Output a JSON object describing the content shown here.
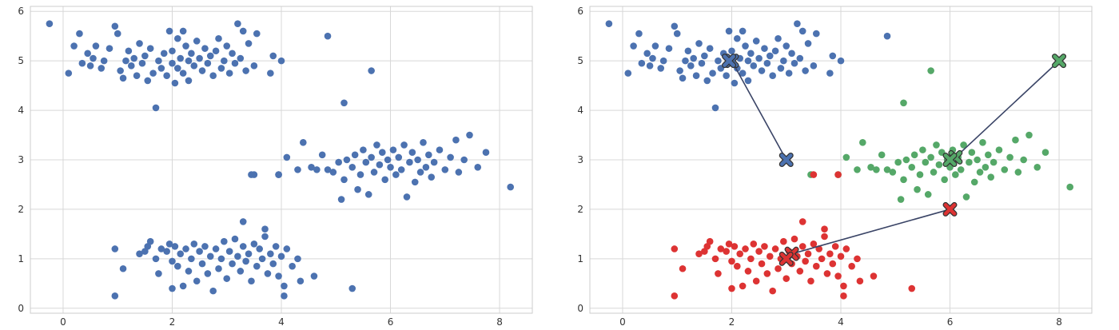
{
  "chart_data": [
    {
      "type": "scatter",
      "title": "",
      "xlabel": "",
      "ylabel": "",
      "xlim": [
        -0.6,
        8.6
      ],
      "ylim": [
        -0.1,
        6.1
      ],
      "xticks": [
        "0",
        "2",
        "4",
        "6",
        "8"
      ],
      "yticks": [
        "0",
        "1",
        "2",
        "3",
        "4",
        "5",
        "6"
      ],
      "grid": true,
      "point_color": "#4c72b0"
    },
    {
      "type": "scatter",
      "title": "",
      "xlabel": "",
      "ylabel": "",
      "xlim": [
        -0.6,
        8.6
      ],
      "ylim": [
        -0.1,
        6.1
      ],
      "xticks": [
        "0",
        "2",
        "4",
        "6",
        "8"
      ],
      "yticks": [
        "0",
        "1",
        "2",
        "3",
        "4",
        "5",
        "6"
      ],
      "grid": true,
      "cluster_colors": [
        "#4c72b0",
        "#55a868",
        "#dd3333"
      ],
      "centroid_paths": [
        {
          "cluster": 0,
          "color": "#4c72b0",
          "points": [
            [
              3,
              3
            ],
            [
              2,
              5
            ],
            [
              1.95,
              5
            ]
          ]
        },
        {
          "cluster": 1,
          "color": "#55a868",
          "points": [
            [
              8,
              5
            ],
            [
              6.1,
              3.05
            ],
            [
              6,
              3
            ]
          ]
        },
        {
          "cluster": 2,
          "color": "#dd3333",
          "points": [
            [
              6,
              2
            ],
            [
              3.1,
              1.1
            ],
            [
              3,
              1
            ]
          ]
        }
      ]
    }
  ],
  "clusters": [
    {
      "id": 0,
      "points": [
        [
          -0.25,
          5.75
        ],
        [
          0.1,
          4.75
        ],
        [
          0.2,
          5.3
        ],
        [
          0.3,
          5.55
        ],
        [
          0.35,
          4.95
        ],
        [
          0.45,
          5.15
        ],
        [
          0.5,
          4.9
        ],
        [
          0.55,
          5.05
        ],
        [
          0.6,
          5.3
        ],
        [
          0.7,
          4.85
        ],
        [
          0.75,
          5.0
        ],
        [
          0.85,
          5.25
        ],
        [
          0.95,
          5.7
        ],
        [
          1.0,
          5.55
        ],
        [
          1.05,
          4.8
        ],
        [
          1.1,
          4.65
        ],
        [
          1.15,
          5.0
        ],
        [
          1.2,
          5.2
        ],
        [
          1.25,
          4.9
        ],
        [
          1.3,
          5.05
        ],
        [
          1.35,
          4.7
        ],
        [
          1.4,
          5.35
        ],
        [
          1.45,
          4.95
        ],
        [
          1.5,
          5.1
        ],
        [
          1.55,
          4.6
        ],
        [
          1.6,
          5.25
        ],
        [
          1.65,
          4.75
        ],
        [
          1.7,
          4.05
        ],
        [
          1.75,
          5.0
        ],
        [
          1.8,
          4.85
        ],
        [
          1.85,
          5.15
        ],
        [
          1.9,
          4.7
        ],
        [
          1.95,
          5.6
        ],
        [
          2.0,
          4.95
        ],
        [
          2.0,
          5.2
        ],
        [
          2.05,
          4.55
        ],
        [
          2.1,
          5.45
        ],
        [
          2.1,
          4.85
        ],
        [
          2.15,
          5.05
        ],
        [
          2.2,
          5.6
        ],
        [
          2.2,
          4.75
        ],
        [
          2.25,
          5.3
        ],
        [
          2.3,
          5.0
        ],
        [
          2.3,
          4.6
        ],
        [
          2.35,
          5.15
        ],
        [
          2.4,
          4.9
        ],
        [
          2.45,
          5.4
        ],
        [
          2.5,
          5.05
        ],
        [
          2.55,
          4.8
        ],
        [
          2.6,
          5.25
        ],
        [
          2.65,
          4.95
        ],
        [
          2.7,
          5.1
        ],
        [
          2.75,
          4.7
        ],
        [
          2.8,
          5.2
        ],
        [
          2.85,
          5.45
        ],
        [
          2.9,
          4.85
        ],
        [
          2.95,
          5.0
        ],
        [
          3.0,
          5.3
        ],
        [
          3.05,
          4.75
        ],
        [
          3.1,
          5.15
        ],
        [
          3.15,
          4.95
        ],
        [
          3.2,
          5.75
        ],
        [
          3.25,
          5.05
        ],
        [
          3.3,
          5.6
        ],
        [
          3.35,
          4.8
        ],
        [
          3.4,
          5.35
        ],
        [
          3.5,
          4.9
        ],
        [
          3.55,
          5.55
        ],
        [
          3.8,
          4.75
        ],
        [
          3.85,
          5.1
        ],
        [
          4.0,
          5.0
        ],
        [
          4.85,
          5.5
        ]
      ]
    },
    {
      "id": 1,
      "points": [
        [
          5.15,
          4.15
        ],
        [
          5.65,
          4.8
        ],
        [
          3.45,
          2.7
        ],
        [
          3.95,
          2.7
        ],
        [
          4.1,
          3.05
        ],
        [
          4.3,
          2.8
        ],
        [
          4.4,
          3.35
        ],
        [
          4.55,
          2.85
        ],
        [
          4.65,
          2.8
        ],
        [
          4.75,
          3.1
        ],
        [
          4.85,
          2.8
        ],
        [
          4.95,
          2.75
        ],
        [
          5.05,
          2.95
        ],
        [
          5.1,
          2.2
        ],
        [
          5.15,
          2.6
        ],
        [
          5.2,
          3.0
        ],
        [
          5.3,
          2.85
        ],
        [
          5.35,
          3.1
        ],
        [
          5.4,
          2.4
        ],
        [
          5.45,
          2.7
        ],
        [
          5.5,
          3.2
        ],
        [
          5.55,
          2.95
        ],
        [
          5.6,
          2.3
        ],
        [
          5.65,
          3.05
        ],
        [
          5.7,
          2.75
        ],
        [
          5.75,
          3.3
        ],
        [
          5.8,
          2.9
        ],
        [
          5.85,
          3.15
        ],
        [
          5.9,
          2.6
        ],
        [
          5.95,
          3.0
        ],
        [
          6.0,
          2.85
        ],
        [
          6.05,
          3.2
        ],
        [
          6.1,
          2.7
        ],
        [
          6.15,
          3.05
        ],
        [
          6.2,
          2.8
        ],
        [
          6.25,
          3.3
        ],
        [
          6.3,
          2.25
        ],
        [
          6.35,
          2.95
        ],
        [
          6.4,
          3.15
        ],
        [
          6.45,
          2.55
        ],
        [
          6.5,
          3.0
        ],
        [
          6.55,
          2.75
        ],
        [
          6.6,
          3.35
        ],
        [
          6.65,
          2.85
        ],
        [
          6.7,
          3.1
        ],
        [
          6.75,
          2.65
        ],
        [
          6.8,
          2.95
        ],
        [
          6.9,
          3.2
        ],
        [
          7.0,
          2.8
        ],
        [
          7.1,
          3.05
        ],
        [
          7.2,
          3.4
        ],
        [
          7.25,
          2.75
        ],
        [
          7.35,
          3.0
        ],
        [
          7.45,
          3.5
        ],
        [
          7.6,
          2.85
        ],
        [
          7.75,
          3.15
        ],
        [
          8.2,
          2.45
        ]
      ]
    },
    {
      "id": 2,
      "points": [
        [
          0.95,
          0.25
        ],
        [
          0.95,
          1.2
        ],
        [
          1.1,
          0.8
        ],
        [
          1.4,
          1.1
        ],
        [
          1.5,
          1.15
        ],
        [
          1.55,
          1.25
        ],
        [
          1.6,
          1.35
        ],
        [
          1.7,
          1.0
        ],
        [
          1.75,
          0.7
        ],
        [
          1.8,
          1.2
        ],
        [
          1.9,
          1.15
        ],
        [
          1.95,
          1.3
        ],
        [
          2.0,
          0.95
        ],
        [
          2.0,
          0.4
        ],
        [
          2.05,
          1.25
        ],
        [
          2.1,
          0.85
        ],
        [
          2.15,
          1.1
        ],
        [
          2.2,
          0.45
        ],
        [
          2.25,
          1.2
        ],
        [
          2.3,
          0.75
        ],
        [
          2.35,
          1.0
        ],
        [
          2.4,
          1.3
        ],
        [
          2.45,
          0.55
        ],
        [
          2.5,
          1.15
        ],
        [
          2.55,
          0.9
        ],
        [
          2.6,
          1.25
        ],
        [
          2.65,
          0.7
        ],
        [
          2.7,
          1.05
        ],
        [
          2.75,
          0.35
        ],
        [
          2.8,
          1.2
        ],
        [
          2.85,
          0.8
        ],
        [
          2.9,
          1.0
        ],
        [
          2.95,
          1.35
        ],
        [
          3.0,
          0.6
        ],
        [
          3.05,
          1.15
        ],
        [
          3.1,
          0.9
        ],
        [
          3.15,
          1.4
        ],
        [
          3.2,
          1.05
        ],
        [
          3.25,
          0.75
        ],
        [
          3.3,
          1.25
        ],
        [
          3.35,
          0.95
        ],
        [
          3.4,
          1.1
        ],
        [
          3.45,
          0.55
        ],
        [
          3.5,
          1.3
        ],
        [
          3.55,
          0.85
        ],
        [
          3.6,
          1.2
        ],
        [
          3.65,
          1.0
        ],
        [
          3.7,
          1.45
        ],
        [
          3.75,
          0.7
        ],
        [
          3.8,
          1.1
        ],
        [
          3.85,
          0.9
        ],
        [
          3.9,
          1.25
        ],
        [
          3.95,
          0.65
        ],
        [
          4.0,
          1.05
        ],
        [
          4.05,
          0.45
        ],
        [
          4.1,
          1.2
        ],
        [
          4.2,
          0.85
        ],
        [
          4.3,
          1.0
        ],
        [
          4.35,
          0.55
        ],
        [
          4.6,
          0.65
        ],
        [
          5.3,
          0.4
        ],
        [
          3.3,
          1.75
        ],
        [
          3.7,
          1.6
        ],
        [
          3.5,
          2.7
        ],
        [
          3.95,
          2.7
        ],
        [
          4.05,
          0.25
        ]
      ]
    }
  ]
}
